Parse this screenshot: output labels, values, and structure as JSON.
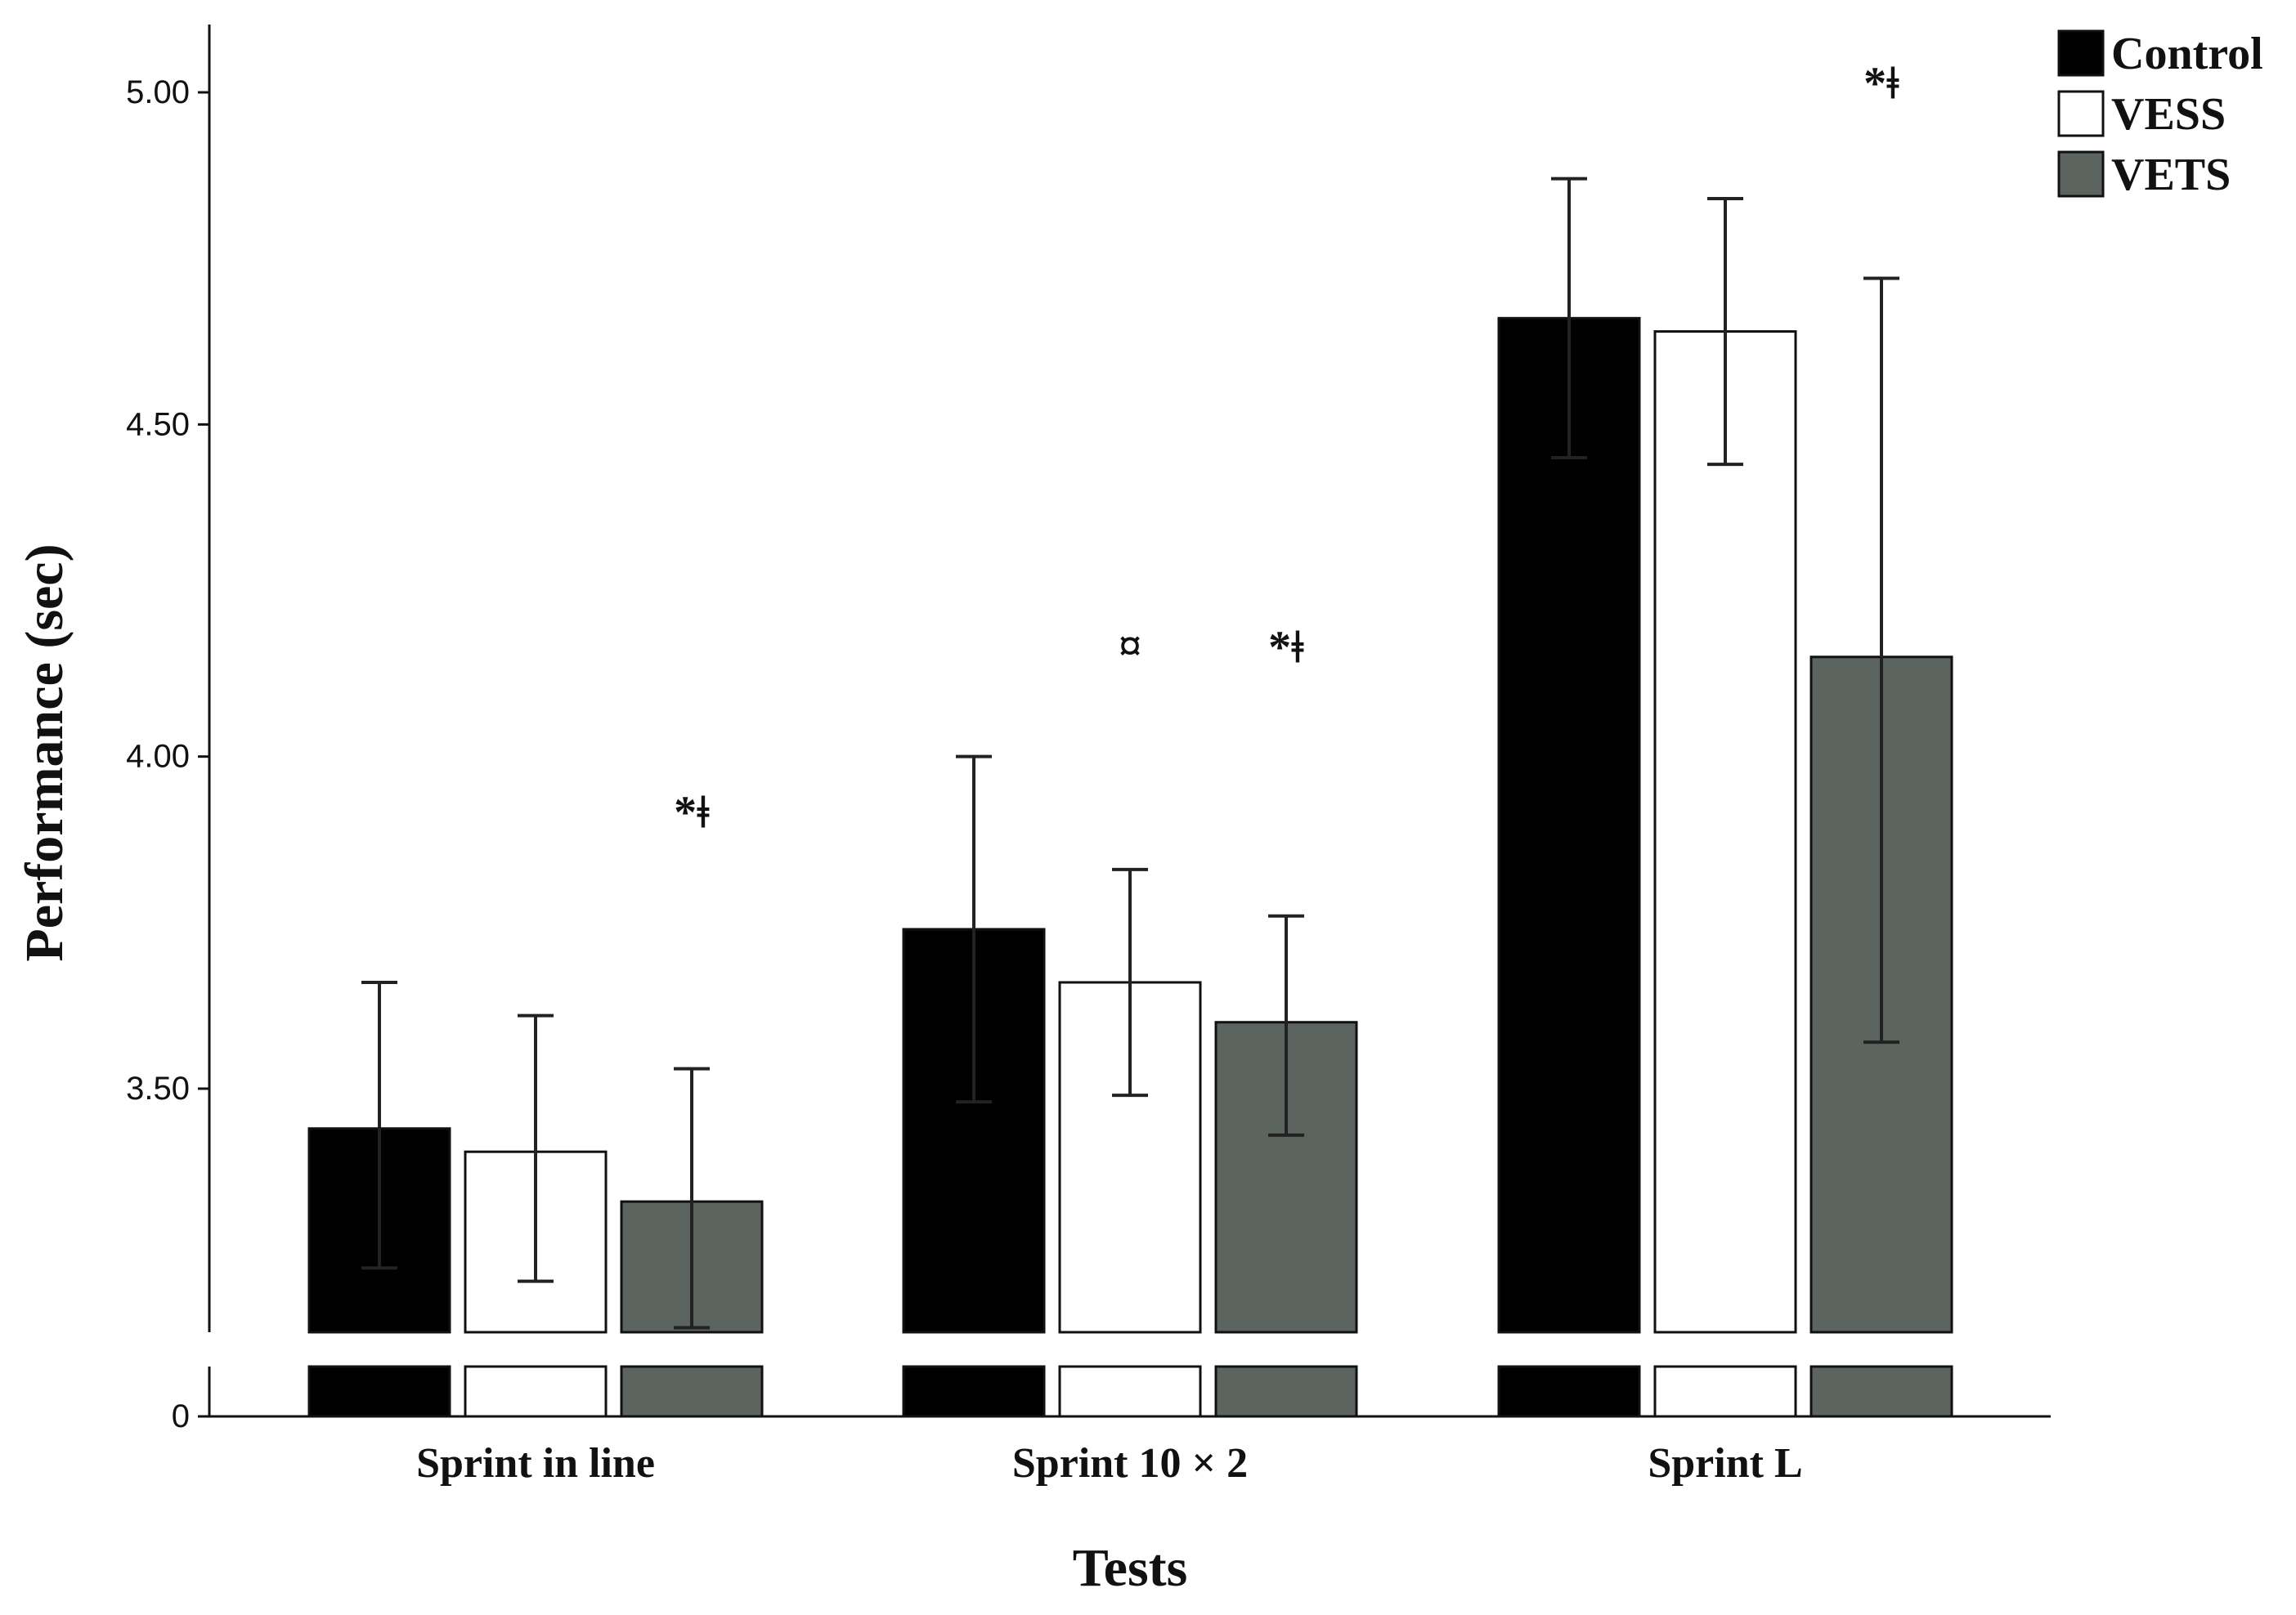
{
  "chart_data": {
    "type": "bar",
    "xlabel": "Tests",
    "ylabel": "Performance (sec)",
    "categories": [
      "Sprint in line",
      "Sprint 10 × 2",
      "Sprint L"
    ],
    "yticks": [
      "5.00",
      "4.50",
      "4.00",
      "3.50"
    ],
    "ytick_values": [
      5.0,
      4.5,
      4.0,
      3.5
    ],
    "y_zero_label": "0",
    "ylim_upper_segment": [
      3.15,
      5.1
    ],
    "axis_break": true,
    "series": [
      {
        "name": "Control",
        "color": "#000000",
        "values": [
          3.44,
          3.74,
          4.66
        ],
        "error": [
          [
            3.23,
            3.66
          ],
          [
            3.48,
            4.0
          ],
          [
            4.45,
            4.87
          ]
        ],
        "annotations": [
          "",
          "",
          ""
        ]
      },
      {
        "name": "VESS",
        "color": "#ffffff",
        "values": [
          3.405,
          3.66,
          4.64
        ],
        "error": [
          [
            3.21,
            3.61
          ],
          [
            3.49,
            3.83
          ],
          [
            4.44,
            4.84
          ]
        ],
        "annotations": [
          "",
          "¤",
          ""
        ]
      },
      {
        "name": "VETS",
        "color": "#5b645e",
        "values": [
          3.33,
          3.6,
          4.15
        ],
        "error": [
          [
            3.14,
            3.53
          ],
          [
            3.43,
            3.76
          ],
          [
            3.57,
            4.72
          ]
        ],
        "annotations": [
          "*ǂ",
          "*ǂ",
          "*ǂ"
        ]
      }
    ]
  }
}
